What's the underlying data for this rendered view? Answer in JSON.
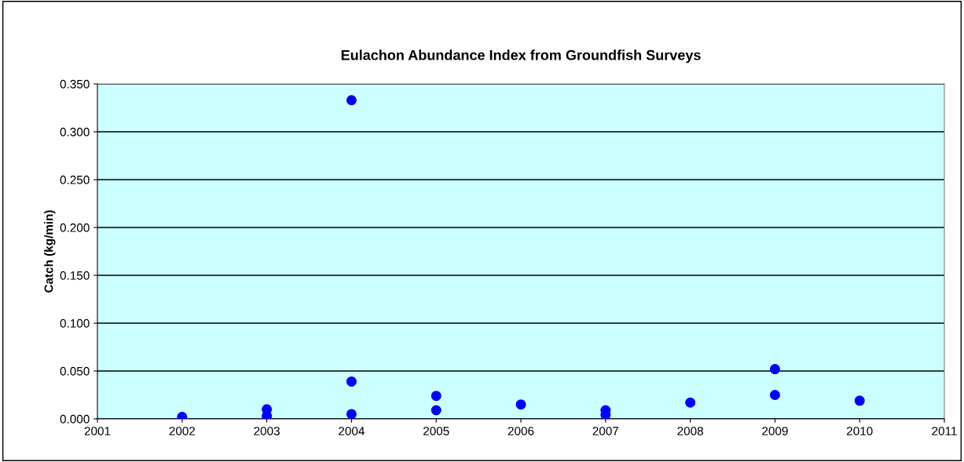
{
  "chart_data": {
    "type": "scatter",
    "title": "Eulachon Abundance Index from Groundfish Surveys",
    "ylabel": "Catch (kg/min)",
    "x": [
      2002,
      2003,
      2003,
      2004,
      2004,
      2004,
      2005,
      2005,
      2006,
      2007,
      2007,
      2008,
      2009,
      2009,
      2010
    ],
    "series": [
      {
        "color": "#0000ff",
        "values": [
          0.002,
          0.01,
          0.003,
          0.333,
          0.039,
          0.005,
          0.024,
          0.009,
          0.015,
          0.009,
          0.004,
          0.017,
          0.052,
          0.025,
          0.019
        ]
      }
    ],
    "xlim": [
      2001,
      2011
    ],
    "xticks": [
      2001,
      2002,
      2003,
      2004,
      2005,
      2006,
      2007,
      2008,
      2009,
      2010,
      2011
    ],
    "ylim": [
      0,
      0.35
    ],
    "yticks": [
      {
        "value": 0,
        "label": "0.000"
      },
      {
        "value": 0.05,
        "label": "0.050"
      },
      {
        "value": 0.1,
        "label": "0.100"
      },
      {
        "value": 0.15,
        "label": "0.150"
      },
      {
        "value": 0.2,
        "label": "0.200"
      },
      {
        "value": 0.25,
        "label": "0.250"
      },
      {
        "value": 0.3,
        "label": "0.300"
      },
      {
        "value": 0.35,
        "label": "0.350"
      }
    ],
    "grid": "y",
    "marker": "circle"
  }
}
